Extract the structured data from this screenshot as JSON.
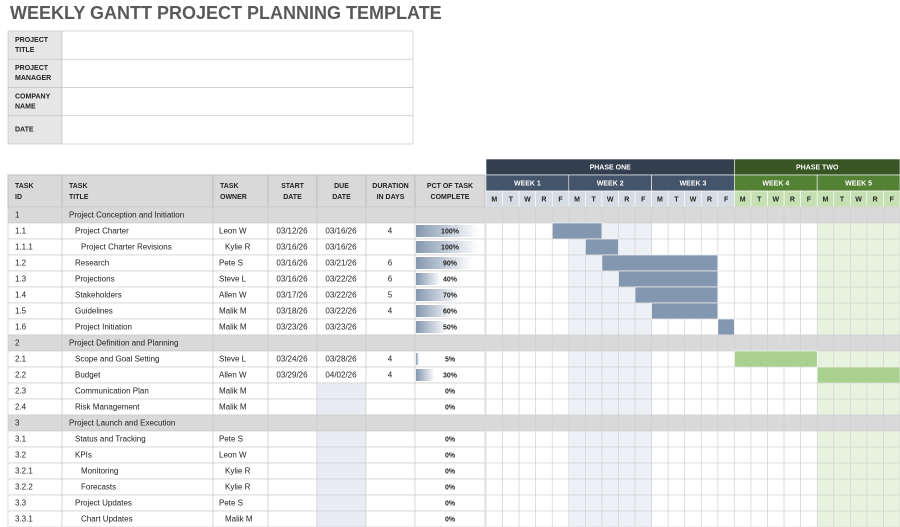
{
  "title": "WEEKLY GANTT PROJECT PLANNING TEMPLATE",
  "info_labels": [
    [
      "PROJECT",
      "TITLE"
    ],
    [
      "PROJECT",
      "MANAGER"
    ],
    [
      "COMPANY",
      "NAME"
    ],
    [
      "DATE"
    ]
  ],
  "columns": [
    [
      "TASK",
      "ID"
    ],
    [
      "TASK",
      "TITLE"
    ],
    [
      "TASK",
      "OWNER"
    ],
    [
      "START",
      "DATE"
    ],
    [
      "DUE",
      "DATE"
    ],
    [
      "DURATION",
      "IN DAYS"
    ],
    [
      "PCT OF TASK",
      "COMPLETE"
    ]
  ],
  "phases": [
    {
      "name": "PHASE ONE",
      "weeks": [
        "WEEK 1",
        "WEEK 2",
        "WEEK 3"
      ]
    },
    {
      "name": "PHASE TWO",
      "weeks": [
        "WEEK 4",
        "WEEK 5"
      ]
    }
  ],
  "days": [
    "M",
    "T",
    "W",
    "R",
    "F"
  ],
  "rows": [
    {
      "id": "1",
      "title": "Project Conception and Initiation"
    },
    {
      "id": "1.1",
      "title": "Project Charter",
      "owner": "Leon W",
      "start": "03/12/26",
      "due": "03/16/26",
      "duration": 4,
      "pct": {
        "value": 100,
        "label": "100%"
      },
      "gantt": [
        4,
        6
      ]
    },
    {
      "id": "1.1.1",
      "title": "Project Charter Revisions",
      "owner": "Kylie R",
      "start": "03/16/26",
      "due": "03/16/26",
      "pct": {
        "value": 100,
        "label": "100%"
      },
      "gantt": [
        6,
        7
      ]
    },
    {
      "id": "1.2",
      "title": "Research",
      "owner": "Pete S",
      "start": "03/16/26",
      "due": "03/21/26",
      "duration": 6,
      "pct": {
        "value": 90,
        "label": "90%"
      },
      "gantt": [
        7,
        13
      ]
    },
    {
      "id": "1.3",
      "title": "Projections",
      "owner": "Steve L",
      "start": "03/16/26",
      "due": "03/22/26",
      "duration": 6,
      "pct": {
        "value": 40,
        "label": "40%"
      },
      "gantt": [
        8,
        13
      ]
    },
    {
      "id": "1.4",
      "title": "Stakeholders",
      "owner": "Allen W",
      "start": "03/17/26",
      "due": "03/22/26",
      "duration": 5,
      "pct": {
        "value": 70,
        "label": "70%"
      },
      "gantt": [
        9,
        13
      ]
    },
    {
      "id": "1.5",
      "title": "Guidelines",
      "owner": "Malik M",
      "start": "03/18/26",
      "due": "03/22/26",
      "duration": 4,
      "pct": {
        "value": 60,
        "label": "60%"
      },
      "gantt": [
        10,
        13
      ]
    },
    {
      "id": "1.6",
      "title": "Project Initiation",
      "owner": "Malik M",
      "start": "03/23/26",
      "due": "03/23/26",
      "pct": {
        "value": 50,
        "label": "50%"
      },
      "gantt": [
        14,
        14
      ]
    },
    {
      "id": "2",
      "title": "Project Definition and Planning"
    },
    {
      "id": "2.1",
      "title": "Scope and Goal Setting",
      "owner": "Steve L",
      "start": "03/24/26",
      "due": "03/28/26",
      "duration": 4,
      "pct": {
        "value": 5,
        "label": "5%"
      },
      "gantt": [
        15,
        19
      ]
    },
    {
      "id": "2.2",
      "title": "Budget",
      "owner": "Allen W",
      "start": "03/29/26",
      "due": "04/02/26",
      "duration": 4,
      "pct": {
        "value": 30,
        "label": "30%"
      },
      "gantt": [
        20,
        24
      ]
    },
    {
      "id": "2.3",
      "title": "Communication Plan",
      "owner": "Malik M",
      "pct": {
        "value": 0,
        "label": "0%"
      }
    },
    {
      "id": "2.4",
      "title": "Risk Management",
      "owner": "Malik M",
      "pct": {
        "value": 0,
        "label": "0%"
      }
    },
    {
      "id": "3",
      "title": "Project Launch and Execution"
    },
    {
      "id": "3.1",
      "title": "Status and Tracking",
      "owner": "Pete S",
      "pct": {
        "value": 0,
        "label": "0%"
      }
    },
    {
      "id": "3.2",
      "title": "KPIs",
      "owner": "Leon W",
      "pct": {
        "value": 0,
        "label": "0%"
      }
    },
    {
      "id": "3.2.1",
      "title": "Monitoring",
      "owner": "Kylie R",
      "pct": {
        "value": 0,
        "label": "0%"
      }
    },
    {
      "id": "3.2.2",
      "title": "Forecasts",
      "owner": "Kylie R",
      "pct": {
        "value": 0,
        "label": "0%"
      }
    },
    {
      "id": "3.3",
      "title": "Project Updates",
      "owner": "Pete S",
      "pct": {
        "value": 0,
        "label": "0%"
      }
    },
    {
      "id": "3.3.1",
      "title": "Chart Updates",
      "owner": "Malik M",
      "pct": {
        "value": 0,
        "label": "0%"
      }
    }
  ]
}
